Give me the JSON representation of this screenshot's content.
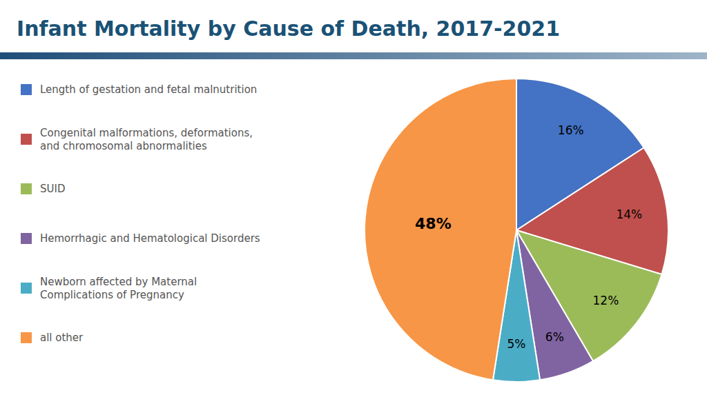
{
  "chart_data": {
    "type": "pie",
    "title": "Infant Mortality by Cause of Death, 2017-2021",
    "categories": [
      "Length of gestation and fetal malnutrition",
      "Congenital malformations, deformations,\nand chromosomal abnormalities",
      "SUID",
      "Hemorrhagic and Hematological Disorders",
      "Newborn affected by Maternal\nComplications of Pregnancy",
      "all other"
    ],
    "values": [
      16,
      14,
      12,
      6,
      5,
      48
    ],
    "value_labels": [
      "16%",
      "14%",
      "12%",
      "6%",
      "5%",
      "48%"
    ],
    "colors": [
      "#4472c4",
      "#c0504d",
      "#9bbb59",
      "#8064a2",
      "#4bacc6",
      "#f79646"
    ],
    "data_labels": true,
    "legend": "left"
  }
}
